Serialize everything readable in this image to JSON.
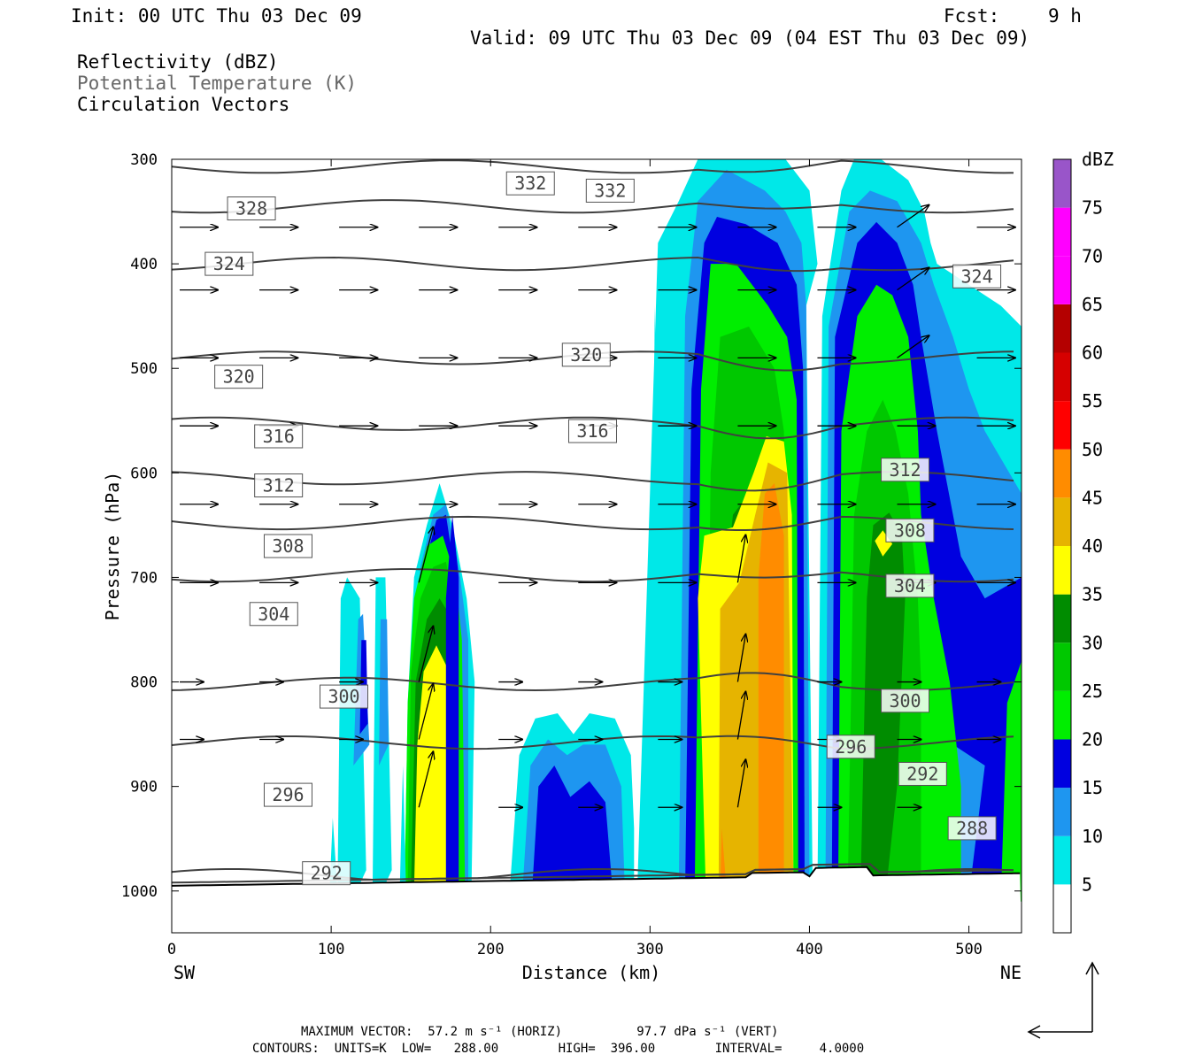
{
  "header": {
    "init": "Init: 00 UTC Thu 03 Dec 09",
    "fcst_label": "Fcst:",
    "fcst_value": "9 h",
    "valid": "Valid: 09 UTC Thu 03 Dec 09 (04 EST Thu 03 Dec 09)",
    "fields": [
      "Reflectivity (dBZ)",
      "Potential Temperature (K)",
      "Circulation Vectors"
    ]
  },
  "footer": {
    "max_vector": "MAXIMUM VECTOR:  57.2 m s⁻¹ (HORIZ)          97.7 dPa s⁻¹ (VERT)",
    "contours": "CONTOURS:  UNITS=K  LOW=   288.00        HIGH=  396.00        INTERVAL=     4.0000"
  },
  "chart_data": {
    "type": "heatmap",
    "xlabel": "Distance (km)",
    "ylabel": "Pressure (hPa)",
    "x_ticks": [
      0,
      100,
      200,
      300,
      400,
      500
    ],
    "y_ticks": [
      300,
      400,
      500,
      600,
      700,
      800,
      900,
      1000
    ],
    "xlim": [
      0,
      533
    ],
    "ylim": [
      1040,
      300
    ],
    "x_end_labels": {
      "left": "SW",
      "right": "NE"
    },
    "colorbar": {
      "label": "dBZ",
      "levels": [
        5,
        10,
        15,
        20,
        25,
        30,
        35,
        40,
        45,
        50,
        55,
        60,
        65,
        70,
        75
      ],
      "colors": [
        "#00e8e8",
        "#1e96f0",
        "#0000e0",
        "#00ee00",
        "#00c800",
        "#008c00",
        "#ffff00",
        "#e6b400",
        "#ff8c00",
        "#ff0000",
        "#d60000",
        "#b40000",
        "#ff00ff",
        "#ff00ff",
        "#9955c9"
      ]
    },
    "theta_contours": [
      {
        "label": "332",
        "p": 307
      },
      {
        "label": "328",
        "p": 345
      },
      {
        "label": "324",
        "p": 400
      },
      {
        "label": "320",
        "p": 490
      },
      {
        "label": "316",
        "p": 553
      },
      {
        "label": "312",
        "p": 605
      },
      {
        "label": "308",
        "p": 648
      },
      {
        "label": "304",
        "p": 698
      },
      {
        "label": "300",
        "p": 802
      },
      {
        "label": "296",
        "p": 858
      },
      {
        "label": "292",
        "p": 985
      },
      {
        "label": "288",
        "p": 1005
      }
    ],
    "contour_labels": [
      {
        "text": "332",
        "x": 225,
        "p": 323
      },
      {
        "text": "332",
        "x": 275,
        "p": 330
      },
      {
        "text": "328",
        "x": 50,
        "p": 347
      },
      {
        "text": "324",
        "x": 36,
        "p": 400
      },
      {
        "text": "324",
        "x": 505,
        "p": 412
      },
      {
        "text": "320",
        "x": 260,
        "p": 487
      },
      {
        "text": "320",
        "x": 42,
        "p": 508
      },
      {
        "text": "316",
        "x": 264,
        "p": 560
      },
      {
        "text": "316",
        "x": 67,
        "p": 565
      },
      {
        "text": "312",
        "x": 67,
        "p": 612
      },
      {
        "text": "312",
        "x": 460,
        "p": 597
      },
      {
        "text": "308",
        "x": 463,
        "p": 655
      },
      {
        "text": "308",
        "x": 73,
        "p": 670
      },
      {
        "text": "304",
        "x": 463,
        "p": 708
      },
      {
        "text": "304",
        "x": 64,
        "p": 735
      },
      {
        "text": "300",
        "x": 460,
        "p": 818
      },
      {
        "text": "300",
        "x": 108,
        "p": 814
      },
      {
        "text": "296",
        "x": 426,
        "p": 862
      },
      {
        "text": "296",
        "x": 73,
        "p": 908
      },
      {
        "text": "292",
        "x": 471,
        "p": 888
      },
      {
        "text": "292",
        "x": 97,
        "p": 983
      },
      {
        "text": "288",
        "x": 502,
        "p": 940
      }
    ],
    "vector_note": "circulation vectors in distance-pressure plane"
  }
}
